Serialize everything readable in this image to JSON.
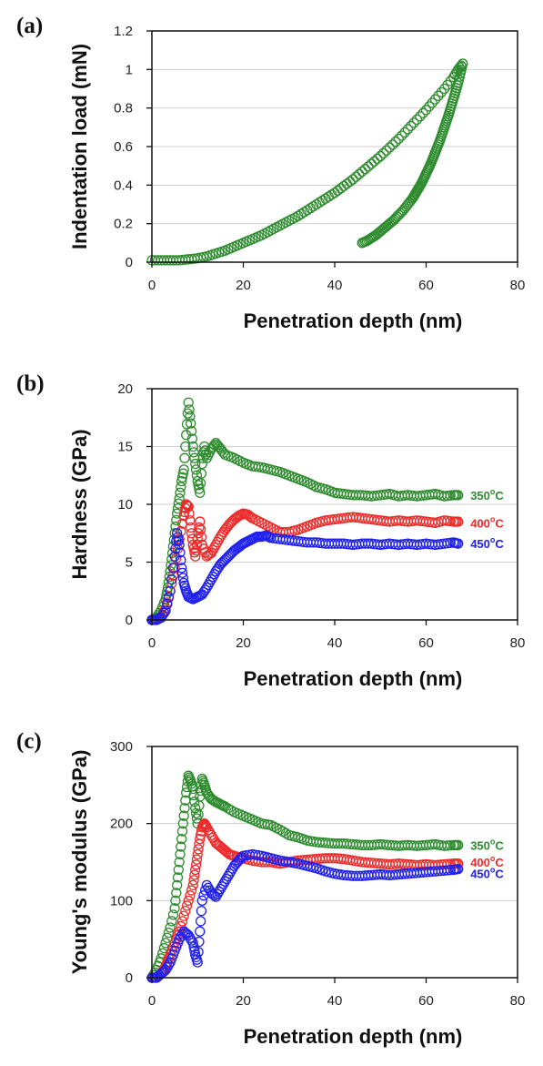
{
  "colors": {
    "green": "#2e8b2e",
    "red": "#ee2a2a",
    "blue": "#2020ee",
    "grid": "#cfcfcf",
    "axis": "#111111"
  },
  "chart_data": [
    {
      "type": "scatter",
      "panel_label": "(a)",
      "xlabel": "Penetration depth (nm)",
      "ylabel": "Indentation load (mN)",
      "xlim": [
        0,
        80
      ],
      "ylim": [
        0,
        1.2
      ],
      "xticks": [
        0,
        20,
        40,
        60,
        80
      ],
      "yticks": [
        0,
        0.2,
        0.4,
        0.6,
        0.8,
        1,
        1.2
      ],
      "xtick_labels": [
        "0",
        "20",
        "40",
        "60",
        "80"
      ],
      "ytick_labels": [
        "0",
        "0.2",
        "0.4",
        "0.6",
        "0.8",
        "1",
        "1.2"
      ],
      "grid": true,
      "series": [
        {
          "color": "green",
          "segments": [
            {
              "x": [
                0,
                2,
                4,
                6,
                8,
                10,
                12,
                14,
                16,
                18,
                20,
                22,
                24,
                26,
                28,
                30,
                32,
                34,
                36,
                38,
                40,
                42,
                44,
                46,
                48,
                50,
                52,
                54,
                56,
                58,
                60,
                62,
                64,
                66,
                67,
                68
              ],
              "y": [
                0.01,
                0.01,
                0.01,
                0.01,
                0.015,
                0.02,
                0.03,
                0.045,
                0.06,
                0.08,
                0.1,
                0.12,
                0.14,
                0.165,
                0.19,
                0.215,
                0.24,
                0.27,
                0.3,
                0.33,
                0.36,
                0.395,
                0.43,
                0.47,
                0.51,
                0.55,
                0.595,
                0.64,
                0.69,
                0.74,
                0.79,
                0.845,
                0.9,
                0.96,
                1.0,
                1.03
              ]
            },
            {
              "x": [
                68,
                67.5,
                67,
                66.5,
                66,
                65.5,
                65,
                64.5,
                64,
                63.5,
                63,
                62.5,
                62,
                61.5,
                61,
                60.5,
                60,
                59.5,
                59,
                58.5,
                58,
                57.5,
                57,
                56,
                55,
                54,
                53,
                52,
                51,
                50,
                49,
                48,
                47,
                46
              ],
              "y": [
                1.03,
                0.98,
                0.93,
                0.89,
                0.85,
                0.81,
                0.77,
                0.735,
                0.7,
                0.665,
                0.63,
                0.6,
                0.57,
                0.54,
                0.51,
                0.485,
                0.46,
                0.435,
                0.41,
                0.39,
                0.37,
                0.35,
                0.33,
                0.3,
                0.27,
                0.245,
                0.22,
                0.2,
                0.18,
                0.16,
                0.14,
                0.125,
                0.11,
                0.1
              ]
            }
          ]
        }
      ]
    },
    {
      "type": "scatter",
      "panel_label": "(b)",
      "xlabel": "Penetration depth (nm)",
      "ylabel": "Hardness (GPa)",
      "xlim": [
        0,
        80
      ],
      "ylim": [
        0,
        20
      ],
      "xticks": [
        0,
        20,
        40,
        60,
        80
      ],
      "yticks": [
        0,
        5,
        10,
        15,
        20
      ],
      "xtick_labels": [
        "0",
        "20",
        "40",
        "60",
        "80"
      ],
      "ytick_labels": [
        "0",
        "5",
        "10",
        "15",
        "20"
      ],
      "grid": true,
      "series": [
        {
          "name": "350",
          "unit": "oC",
          "color": "green",
          "label_y": 10.8,
          "x": [
            0,
            1,
            2,
            3,
            3.5,
            4,
            4.5,
            5,
            5.5,
            6,
            6.5,
            7,
            7.5,
            8,
            8.5,
            9,
            9.5,
            10,
            10.5,
            11,
            11.5,
            12,
            13,
            14,
            15,
            16,
            18,
            20,
            22,
            24,
            26,
            28,
            30,
            32,
            34,
            36,
            38,
            40,
            42,
            44,
            46,
            48,
            50,
            52,
            54,
            56,
            58,
            60,
            62,
            64,
            66,
            67
          ],
          "y": [
            0,
            0.2,
            0.8,
            1.8,
            2.8,
            4.2,
            5.8,
            7.5,
            9.2,
            10.5,
            12,
            13,
            16,
            18.8,
            17,
            15,
            13.5,
            12,
            11,
            13.5,
            15,
            14,
            14.8,
            15.3,
            14.8,
            14.3,
            14,
            13.6,
            13.3,
            13.2,
            13,
            12.8,
            12.5,
            12.2,
            11.9,
            11.5,
            11.3,
            11,
            10.9,
            10.8,
            10.8,
            10.7,
            10.8,
            10.9,
            10.7,
            10.8,
            10.7,
            10.8,
            10.9,
            10.7,
            10.8,
            10.8
          ]
        },
        {
          "name": "400",
          "unit": "oC",
          "color": "red",
          "label_y": 8.4,
          "x": [
            0,
            1,
            2,
            3,
            4,
            5,
            6,
            7,
            7.5,
            8,
            8.5,
            9,
            9.5,
            10,
            10.5,
            11,
            12,
            13,
            14,
            15,
            16,
            17,
            18,
            19,
            20,
            21,
            22,
            24,
            26,
            28,
            30,
            32,
            34,
            36,
            38,
            40,
            42,
            44,
            46,
            48,
            50,
            52,
            54,
            56,
            58,
            60,
            62,
            64,
            66,
            67
          ],
          "y": [
            0,
            0,
            0.2,
            1,
            2.5,
            4.5,
            7,
            9,
            10,
            9.8,
            8,
            6.5,
            5.5,
            7,
            8.5,
            6.5,
            5.5,
            5.8,
            6.5,
            7.2,
            7.8,
            8.3,
            8.7,
            9,
            9.2,
            9.1,
            8.8,
            8.4,
            8,
            7.6,
            7.6,
            7.8,
            8.1,
            8.4,
            8.6,
            8.7,
            8.8,
            8.9,
            8.8,
            8.7,
            8.6,
            8.5,
            8.6,
            8.5,
            8.6,
            8.5,
            8.4,
            8.6,
            8.5,
            8.5
          ]
        },
        {
          "name": "450",
          "unit": "oC",
          "color": "blue",
          "label_y": 6.6,
          "x": [
            0,
            1,
            2,
            3,
            4,
            5,
            5.5,
            6,
            6.5,
            7,
            7.5,
            8,
            9,
            10,
            11,
            12,
            13,
            14,
            15,
            16,
            17,
            18,
            19,
            20,
            21,
            22,
            23,
            24,
            25,
            26,
            28,
            30,
            32,
            34,
            36,
            38,
            40,
            42,
            44,
            46,
            48,
            50,
            52,
            54,
            56,
            58,
            60,
            62,
            64,
            66,
            67
          ],
          "y": [
            0,
            0,
            0.2,
            0.8,
            2.5,
            5.5,
            7.5,
            6.5,
            4.5,
            3.2,
            2.5,
            2,
            1.8,
            2,
            2.2,
            2.8,
            3.5,
            4.2,
            4.8,
            5.2,
            5.6,
            6,
            6.3,
            6.6,
            6.8,
            7,
            7.2,
            7.2,
            7.3,
            7.1,
            7,
            6.9,
            6.8,
            6.7,
            6.7,
            6.6,
            6.6,
            6.6,
            6.5,
            6.6,
            6.6,
            6.5,
            6.6,
            6.5,
            6.6,
            6.5,
            6.6,
            6.5,
            6.6,
            6.7,
            6.6
          ]
        }
      ]
    },
    {
      "type": "scatter",
      "panel_label": "(c)",
      "xlabel": "Penetration depth (nm)",
      "ylabel": "Young's modulus (GPa)",
      "xlim": [
        0,
        80
      ],
      "ylim": [
        0,
        300
      ],
      "xticks": [
        0,
        20,
        40,
        60,
        80
      ],
      "yticks": [
        0,
        100,
        200,
        300
      ],
      "xtick_labels": [
        "0",
        "20",
        "40",
        "60",
        "80"
      ],
      "ytick_labels": [
        "0",
        "100",
        "200",
        "300"
      ],
      "grid": true,
      "series": [
        {
          "name": "350",
          "unit": "oC",
          "color": "green",
          "label_y": 172,
          "x": [
            0,
            1,
            2,
            3,
            4,
            5,
            5.5,
            6,
            6.5,
            7,
            7.5,
            8,
            8.5,
            9,
            9.5,
            10,
            10.5,
            11,
            11.5,
            12,
            13,
            14,
            15,
            16,
            18,
            20,
            22,
            24,
            26,
            28,
            30,
            32,
            34,
            36,
            38,
            40,
            42,
            44,
            46,
            48,
            50,
            52,
            54,
            56,
            58,
            60,
            62,
            64,
            66,
            67
          ],
          "y": [
            0,
            10,
            25,
            45,
            65,
            90,
            120,
            150,
            180,
            210,
            240,
            262,
            255,
            245,
            220,
            200,
            235,
            258,
            250,
            240,
            232,
            228,
            225,
            222,
            215,
            210,
            205,
            200,
            198,
            192,
            185,
            182,
            178,
            176,
            175,
            174,
            174,
            173,
            172,
            172,
            173,
            172,
            171,
            172,
            171,
            172,
            173,
            171,
            172,
            172
          ]
        },
        {
          "name": "400",
          "unit": "oC",
          "color": "red",
          "label_y": 150,
          "x": [
            0,
            1,
            2,
            3,
            4,
            5,
            6,
            7,
            8,
            9,
            9.5,
            10,
            10.5,
            11,
            11.5,
            12,
            13,
            14,
            15,
            16,
            17,
            18,
            20,
            22,
            24,
            26,
            28,
            30,
            32,
            34,
            36,
            38,
            40,
            42,
            44,
            46,
            48,
            50,
            52,
            54,
            56,
            58,
            60,
            62,
            64,
            66,
            67
          ],
          "y": [
            0,
            0,
            5,
            15,
            30,
            45,
            60,
            80,
            100,
            120,
            140,
            160,
            180,
            195,
            200,
            195,
            185,
            175,
            170,
            165,
            160,
            158,
            155,
            152,
            150,
            150,
            148,
            150,
            152,
            153,
            154,
            155,
            155,
            154,
            152,
            150,
            149,
            148,
            147,
            148,
            147,
            146,
            147,
            146,
            147,
            148,
            148
          ]
        },
        {
          "name": "450",
          "unit": "oC",
          "color": "blue",
          "label_y": 135,
          "x": [
            0,
            1,
            2,
            3,
            4,
            5,
            6,
            7,
            8,
            9,
            9.5,
            10,
            10.5,
            11,
            12,
            13,
            14,
            15,
            16,
            17,
            18,
            19,
            20,
            22,
            24,
            26,
            28,
            30,
            32,
            34,
            36,
            38,
            40,
            42,
            44,
            46,
            48,
            50,
            52,
            54,
            56,
            58,
            60,
            62,
            64,
            66,
            67
          ],
          "y": [
            0,
            0,
            5,
            10,
            20,
            35,
            50,
            60,
            55,
            45,
            30,
            20,
            60,
            100,
            120,
            110,
            105,
            115,
            125,
            135,
            145,
            152,
            158,
            160,
            158,
            155,
            152,
            150,
            148,
            145,
            142,
            138,
            135,
            133,
            132,
            132,
            133,
            134,
            133,
            134,
            135,
            136,
            137,
            138,
            139,
            140,
            141
          ]
        }
      ]
    }
  ]
}
